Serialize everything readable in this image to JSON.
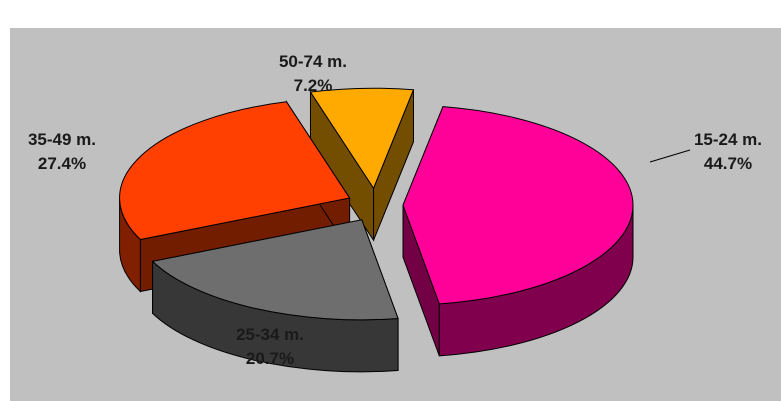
{
  "chart_data": {
    "type": "pie",
    "style": "3d-exploded",
    "categories": [
      "15-24 m.",
      "25-34 m.",
      "35-49 m.",
      "50-74 m."
    ],
    "values": [
      44.7,
      20.7,
      27.4,
      7.2
    ],
    "value_labels": [
      "44.7%",
      "20.7%",
      "27.4%",
      "7.2%"
    ],
    "colors": [
      "#ff0099",
      "#6e6e6e",
      "#ff4000",
      "#ffaa00"
    ],
    "title": "",
    "legend": "none",
    "background": "#c0c0c0"
  }
}
